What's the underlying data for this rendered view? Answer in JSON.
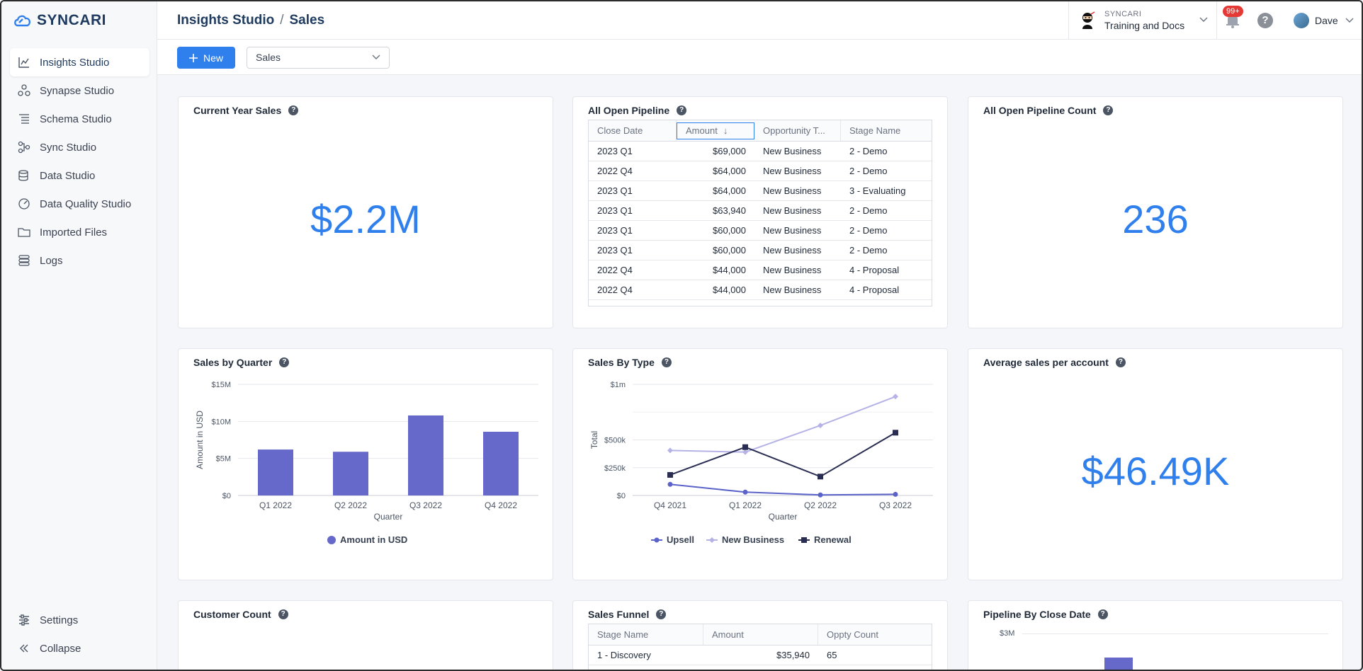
{
  "app": {
    "logo": "SYNCARI"
  },
  "sidebar": {
    "items": [
      {
        "label": "Insights Studio",
        "icon": "chart-icon",
        "active": true
      },
      {
        "label": "Synapse Studio",
        "icon": "synapse-icon"
      },
      {
        "label": "Schema Studio",
        "icon": "schema-icon"
      },
      {
        "label": "Sync Studio",
        "icon": "sync-icon"
      },
      {
        "label": "Data Studio",
        "icon": "database-icon"
      },
      {
        "label": "Data Quality Studio",
        "icon": "gauge-icon"
      },
      {
        "label": "Imported Files",
        "icon": "folder-icon"
      },
      {
        "label": "Logs",
        "icon": "logs-icon"
      }
    ],
    "settings_label": "Settings",
    "collapse_label": "Collapse"
  },
  "header": {
    "breadcrumb_root": "Insights Studio",
    "breadcrumb_sep": "/",
    "breadcrumb_page": "Sales",
    "org_label": "SYNCARI",
    "org_name": "Training and Docs",
    "notification_badge": "99+",
    "help_label": "?",
    "user_name": "Dave"
  },
  "toolbar": {
    "new_label": "New",
    "dashboard_select": "Sales"
  },
  "cards": {
    "current_year_sales": {
      "title": "Current Year Sales",
      "value": "$2.2M"
    },
    "all_open_pipeline": {
      "title": "All Open Pipeline",
      "columns": [
        "Close Date",
        "Amount",
        "Opportunity T...",
        "Stage Name"
      ],
      "sort_arrow": "↓",
      "rows": [
        [
          "2023 Q1",
          "$69,000",
          "New Business",
          "2 - Demo"
        ],
        [
          "2022 Q4",
          "$64,000",
          "New Business",
          "2 - Demo"
        ],
        [
          "2023 Q1",
          "$64,000",
          "New Business",
          "3 - Evaluating"
        ],
        [
          "2023 Q1",
          "$63,940",
          "New Business",
          "2 - Demo"
        ],
        [
          "2023 Q1",
          "$60,000",
          "New Business",
          "2 - Demo"
        ],
        [
          "2023 Q1",
          "$60,000",
          "New Business",
          "2 - Demo"
        ],
        [
          "2022 Q4",
          "$44,000",
          "New Business",
          "4 - Proposal"
        ],
        [
          "2022 Q4",
          "$44,000",
          "New Business",
          "4 - Proposal"
        ]
      ]
    },
    "all_open_pipeline_count": {
      "title": "All Open Pipeline Count",
      "value": "236"
    },
    "sales_by_quarter": {
      "title": "Sales by Quarter"
    },
    "sales_by_type": {
      "title": "Sales By Type"
    },
    "average_sales": {
      "title": "Average sales per account",
      "value": "$46.49K"
    },
    "customer_count": {
      "title": "Customer Count"
    },
    "sales_funnel": {
      "title": "Sales Funnel",
      "columns": [
        "Stage Name",
        "Amount",
        "Oppty Count"
      ],
      "rows": [
        [
          "1 - Discovery",
          "$35,940",
          "65"
        ]
      ]
    },
    "pipeline_by_close_date": {
      "title": "Pipeline By Close Date",
      "y_tick": "$3M"
    }
  },
  "chart_data": [
    {
      "type": "bar",
      "categories": [
        "Q1 2022",
        "Q2 2022",
        "Q3 2022",
        "Q4 2022"
      ],
      "values": [
        6200000,
        5900000,
        10800000,
        8600000
      ],
      "xlabel": "Quarter",
      "ylabel": "Amount in USD",
      "ylim": [
        0,
        15000000
      ],
      "y_ticks": [
        "$0",
        "$5M",
        "$10M",
        "$15M"
      ],
      "legend": [
        "Amount in USD"
      ],
      "legend_position": "bottom",
      "grid": true,
      "colors": [
        "#6669c9"
      ]
    },
    {
      "type": "line",
      "categories": [
        "Q4 2021",
        "Q1 2022",
        "Q2 2022",
        "Q3 2022"
      ],
      "series": [
        {
          "name": "Upsell",
          "values": [
            100000,
            30000,
            5000,
            10000
          ],
          "color": "#5b63c9",
          "marker": "circle"
        },
        {
          "name": "New Business",
          "values": [
            405000,
            390000,
            630000,
            890000
          ],
          "color": "#b5b3e6",
          "marker": "diamond"
        },
        {
          "name": "Renewal",
          "values": [
            185000,
            435000,
            170000,
            565000
          ],
          "color": "#2a2d52",
          "marker": "square"
        }
      ],
      "xlabel": "Quarter",
      "ylabel": "Total",
      "ylim": [
        0,
        1000000
      ],
      "y_ticks": [
        "$0",
        "$250k",
        "$500k",
        "$1m"
      ],
      "legend_position": "bottom",
      "grid": true
    }
  ]
}
